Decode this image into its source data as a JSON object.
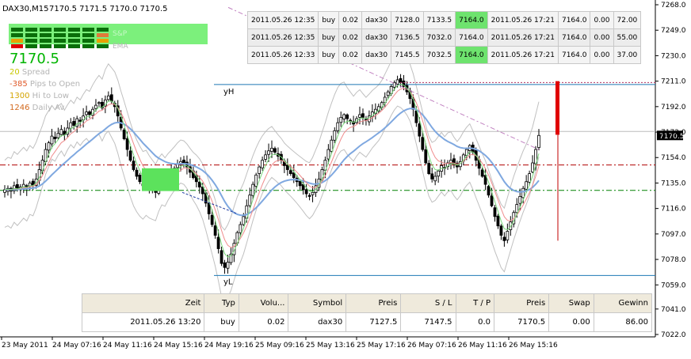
{
  "header": {
    "symbol_timeframe": "DAX30,M15",
    "ohlc": "7170.5 7171.5 7170.0 7170.5"
  },
  "indicator_panel": {
    "panel_label_ema": "EMA",
    "panel_label_top": "S&P",
    "price": "7170.5",
    "rows": [
      {
        "value": "20",
        "label": "Spread",
        "value_color": "#c8c800",
        "label_color": "#b4b4b4"
      },
      {
        "value": "-385",
        "label": "Pips to Open",
        "value_color": "#e05a2a",
        "label_color": "#b4b4b4"
      },
      {
        "value": "1300",
        "label": "Hi to Low",
        "value_color": "#d4a400",
        "label_color": "#b4b4b4"
      },
      {
        "value": "1246",
        "label": "Daily Av",
        "value_color": "#d2691e",
        "label_color": "#b4b4b4"
      }
    ],
    "price_color": "#00b400",
    "panel_color": "#7cf07c"
  },
  "trades_table": {
    "rows": [
      [
        "2011.05.26 12:35",
        "buy",
        "0.02",
        "dax30",
        "7128.0",
        "7133.5",
        "7164.0",
        "2011.05.26 17:21",
        "7164.0",
        "0.00",
        "72.00"
      ],
      [
        "2011.05.26 12:35",
        "buy",
        "0.02",
        "dax30",
        "7136.5",
        "7032.0",
        "7164.0",
        "2011.05.26 17:21",
        "7164.0",
        "0.00",
        "55.00"
      ],
      [
        "2011.05.26 12:33",
        "buy",
        "0.02",
        "dax30",
        "7145.5",
        "7032.5",
        "7164.0",
        "2011.05.26 17:21",
        "7164.0",
        "0.00",
        "37.00"
      ]
    ]
  },
  "position_table": {
    "headers": [
      "Zeit",
      "Typ",
      "Volu...",
      "Symbol",
      "Preis",
      "S / L",
      "T / P",
      "Preis",
      "Swap",
      "Gewinn"
    ],
    "row": [
      "2011.05.26 13:20",
      "buy",
      "0.02",
      "dax30",
      "7127.5",
      "7147.5",
      "0.0",
      "7170.5",
      "0.00",
      "86.00"
    ]
  },
  "chart_data": {
    "type": "candlestick",
    "symbol": "DAX30",
    "timeframe": "M15",
    "y_axis": {
      "ticks": [
        7268.0,
        7249.0,
        7230.0,
        7211.0,
        7192.0,
        7173.0,
        7154.0,
        7135.0,
        7116.0,
        7097.0,
        7078.0,
        7059.0,
        7041.0,
        7022.0
      ],
      "tick_labels": [
        "7268.0",
        "7249.0",
        "7230.0",
        "7211.0",
        "7192.0",
        "7173.0",
        "7154.0",
        "7135.0",
        "7116.0",
        "7097.0",
        "7078.0",
        "7059.0",
        "7041.0",
        "7022.0"
      ],
      "range": [
        7018,
        7271
      ]
    },
    "x_axis": {
      "tick_labels": [
        "23 May 2011",
        "24 May 07:16",
        "24 May 11:16",
        "24 May 15:16",
        "24 May 19:16",
        "25 May 09:16",
        "25 May 13:16",
        "25 May 17:16",
        "26 May 07:16",
        "26 May 11:16",
        "26 May 15:16"
      ]
    },
    "current_price": 7170.5,
    "current_price_label": "7170.5",
    "levels": [
      {
        "label": "yH",
        "price": 7208.5
      },
      {
        "label": "yL",
        "price": 7066.0
      },
      {
        "price": 7148.5,
        "style": "dash-dot",
        "color": "#b00000"
      },
      {
        "price": 7129.5,
        "style": "dash-dot",
        "color": "#008000"
      },
      {
        "price": 7173.5,
        "style": "solid",
        "color": "#bbbbbb"
      }
    ],
    "candles_close_path": [
      7130,
      7131,
      7129,
      7133,
      7130,
      7132,
      7134,
      7131,
      7135,
      7133,
      7138,
      7145,
      7152,
      7160,
      7165,
      7170,
      7168,
      7172,
      7175,
      7171,
      7176,
      7180,
      7178,
      7183,
      7181,
      7185,
      7188,
      7186,
      7190,
      7193,
      7195,
      7191,
      7197,
      7200,
      7196,
      7192,
      7185,
      7176,
      7168,
      7160,
      7152,
      7145,
      7140,
      7136,
      7133,
      7135,
      7132,
      7130,
      7128,
      7134,
      7138,
      7136,
      7140,
      7143,
      7146,
      7149,
      7151,
      7150,
      7147,
      7143,
      7139,
      7136,
      7132,
      7127,
      7120,
      7112,
      7104,
      7096,
      7086,
      7075,
      7072,
      7076,
      7082,
      7090,
      7098,
      7104,
      7110,
      7118,
      7126,
      7134,
      7141,
      7147,
      7152,
      7156,
      7159,
      7161,
      7158,
      7155,
      7152,
      7148,
      7145,
      7142,
      7139,
      7136,
      7133,
      7130,
      7127,
      7125,
      7128,
      7133,
      7138,
      7145,
      7152,
      7160,
      7167,
      7174,
      7180,
      7184,
      7186,
      7183,
      7181,
      7179,
      7183,
      7186,
      7184,
      7182,
      7185,
      7188,
      7190,
      7192,
      7195,
      7199,
      7203,
      7207,
      7210,
      7212,
      7210,
      7207,
      7203,
      7198,
      7190,
      7180,
      7170,
      7160,
      7150,
      7142,
      7138,
      7140,
      7144,
      7148,
      7146,
      7150,
      7152,
      7149,
      7147,
      7151,
      7156,
      7160,
      7163,
      7158,
      7152,
      7146,
      7140,
      7134,
      7126,
      7118,
      7110,
      7103,
      7096,
      7092,
      7099,
      7106,
      7113,
      7119,
      7125,
      7131,
      7136,
      7142,
      7150,
      7160,
      7170.5
    ],
    "trade_markers": [
      {
        "type": "stop-bar",
        "from": 7211.0,
        "to": 7171.0,
        "color": "#e00000"
      },
      {
        "type": "vertical-line",
        "from": 7171.0,
        "to": 7092.0,
        "color": "#c00000"
      }
    ],
    "grid": false
  }
}
